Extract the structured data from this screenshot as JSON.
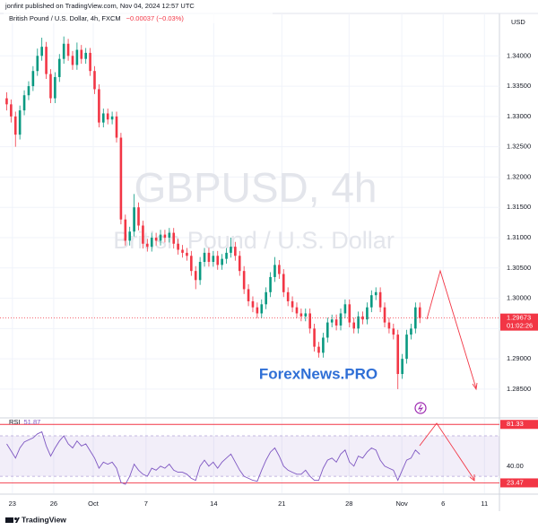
{
  "header": {
    "publisher": "jonfint published on TradingView.com, Nov 04, 2024 12:57 UTC"
  },
  "chart_data": [
    {
      "type": "candlestick",
      "symbol": "British Pound / U.S. Dollar, 4h, FXCM",
      "change": "−0.00037 (−0.03%)",
      "watermark": "GBPUSD, 4h",
      "watermark_subtitle": "British Pound / U.S. Dollar",
      "currency": "USD",
      "overlay_text": "ForexNews.PRO",
      "countdown": "01:02:26",
      "up_color": "#089981",
      "down_color": "#f23645",
      "open": [
        1.333,
        1.332,
        1.33,
        1.327,
        1.331,
        1.3335,
        1.335,
        1.3375,
        1.34,
        1.3415,
        1.337,
        1.333,
        1.3365,
        1.3395,
        1.342,
        1.34,
        1.3385,
        1.341,
        1.3395,
        1.3405,
        1.3375,
        1.3345,
        1.329,
        1.3305,
        1.3295,
        1.33,
        1.3265,
        1.313,
        1.3095,
        1.311,
        1.315,
        1.312,
        1.309,
        1.3085,
        1.31,
        1.3095,
        1.3105,
        1.31,
        1.3108,
        1.309,
        1.308,
        1.3075,
        1.307,
        1.3045,
        1.303,
        1.306,
        1.3075,
        1.306,
        1.307,
        1.3055,
        1.3065,
        1.3075,
        1.3085,
        1.307,
        1.3045,
        1.3015,
        1.2995,
        1.2985,
        1.2975,
        1.299,
        1.301,
        1.3035,
        1.3055,
        1.304,
        1.301,
        1.2995,
        1.2985,
        1.2975,
        1.297,
        1.2975,
        1.295,
        1.292,
        1.291,
        1.2935,
        1.296,
        1.2965,
        1.2955,
        1.2975,
        1.299,
        1.296,
        1.295,
        1.297,
        1.2965,
        1.2985,
        1.3005,
        1.301,
        1.2985,
        1.296,
        1.295,
        1.294,
        1.2875,
        1.29,
        1.294,
        1.295,
        1.2985
      ],
      "high": [
        1.334,
        1.3328,
        1.3308,
        1.3318,
        1.3343,
        1.3358,
        1.3383,
        1.3412,
        1.343,
        1.3423,
        1.3378,
        1.3373,
        1.3403,
        1.3432,
        1.3428,
        1.3408,
        1.3422,
        1.3418,
        1.3413,
        1.3413,
        1.3383,
        1.3353,
        1.3313,
        1.3313,
        1.3308,
        1.3308,
        1.3273,
        1.3138,
        1.3118,
        1.3172,
        1.3158,
        1.3128,
        1.3098,
        1.3108,
        1.3108,
        1.3113,
        1.3113,
        1.3116,
        1.3116,
        1.3098,
        1.3088,
        1.3083,
        1.3078,
        1.3053,
        1.3068,
        1.3083,
        1.3083,
        1.3078,
        1.3078,
        1.3073,
        1.3083,
        1.31,
        1.3093,
        1.3078,
        1.3053,
        1.3023,
        1.3003,
        1.2993,
        1.2998,
        1.3018,
        1.3043,
        1.3068,
        1.3063,
        1.3048,
        1.3018,
        1.3003,
        1.2993,
        1.2983,
        1.2983,
        1.2983,
        1.2958,
        1.2928,
        1.2943,
        1.2968,
        1.2973,
        1.2973,
        1.2983,
        1.2998,
        1.2998,
        1.2968,
        1.2978,
        1.2978,
        1.2993,
        1.3013,
        1.3018,
        1.3018,
        1.2993,
        1.2968,
        1.2958,
        1.2948,
        1.2908,
        1.2948,
        1.2958,
        1.2993,
        1.2993
      ],
      "low": [
        1.331,
        1.329,
        1.325,
        1.3262,
        1.3302,
        1.3327,
        1.3342,
        1.3367,
        1.3392,
        1.3362,
        1.3322,
        1.3322,
        1.3357,
        1.3387,
        1.3392,
        1.3377,
        1.3377,
        1.3387,
        1.3387,
        1.3367,
        1.3337,
        1.3282,
        1.3282,
        1.3287,
        1.3287,
        1.3257,
        1.3122,
        1.3087,
        1.3087,
        1.3102,
        1.3112,
        1.3082,
        1.3077,
        1.3077,
        1.3087,
        1.3087,
        1.3092,
        1.3092,
        1.3082,
        1.3072,
        1.3067,
        1.3062,
        1.3037,
        1.3015,
        1.3022,
        1.3052,
        1.3052,
        1.3052,
        1.3047,
        1.3047,
        1.3057,
        1.3067,
        1.3062,
        1.3037,
        1.3007,
        1.2987,
        1.2977,
        1.2967,
        1.2967,
        1.2982,
        1.3002,
        1.3027,
        1.3032,
        1.3002,
        1.2987,
        1.2977,
        1.2967,
        1.2962,
        1.2962,
        1.2942,
        1.2912,
        1.2902,
        1.2902,
        1.2927,
        1.2952,
        1.2947,
        1.2947,
        1.2967,
        1.2952,
        1.2942,
        1.2942,
        1.2957,
        1.2957,
        1.2977,
        1.2997,
        1.2977,
        1.2952,
        1.2942,
        1.2932,
        1.285,
        1.2867,
        1.2892,
        1.2932,
        1.2942,
        1.2959
      ],
      "close": [
        1.332,
        1.33,
        1.327,
        1.331,
        1.3335,
        1.335,
        1.3375,
        1.34,
        1.3415,
        1.337,
        1.333,
        1.3365,
        1.3395,
        1.342,
        1.34,
        1.3385,
        1.341,
        1.3395,
        1.3405,
        1.3375,
        1.3345,
        1.329,
        1.3305,
        1.3295,
        1.33,
        1.3265,
        1.313,
        1.3095,
        1.311,
        1.315,
        1.312,
        1.309,
        1.3085,
        1.31,
        1.3095,
        1.3105,
        1.31,
        1.3108,
        1.309,
        1.308,
        1.3075,
        1.307,
        1.3045,
        1.303,
        1.306,
        1.3075,
        1.306,
        1.307,
        1.3055,
        1.3065,
        1.3075,
        1.3085,
        1.307,
        1.3045,
        1.3015,
        1.2995,
        1.2985,
        1.2975,
        1.299,
        1.301,
        1.3035,
        1.3055,
        1.304,
        1.301,
        1.2995,
        1.2985,
        1.2975,
        1.297,
        1.2975,
        1.295,
        1.292,
        1.291,
        1.2935,
        1.296,
        1.2965,
        1.2955,
        1.2975,
        1.299,
        1.296,
        1.295,
        1.297,
        1.2965,
        1.2985,
        1.3005,
        1.301,
        1.2985,
        1.296,
        1.295,
        1.294,
        1.2875,
        1.29,
        1.294,
        1.295,
        1.2985,
        1.29673
      ],
      "xlim": [
        -0.5,
        111.7
      ],
      "xticks": [
        {
          "value": 1.3,
          "label": "23"
        },
        {
          "value": 10.7,
          "label": "26"
        },
        {
          "value": 19.7,
          "label": "Oct"
        },
        {
          "value": 31.7,
          "label": "7"
        },
        {
          "value": 47.1,
          "label": "14"
        },
        {
          "value": 62.6,
          "label": "21"
        },
        {
          "value": 77.9,
          "label": "28"
        },
        {
          "value": 89.9,
          "label": "Nov"
        },
        {
          "value": 99.3,
          "label": "6"
        },
        {
          "value": 108.7,
          "label": "11"
        }
      ],
      "ylim": [
        1.2804,
        1.347
      ],
      "yticks": [
        {
          "value": 1.285,
          "label": "1.28500"
        },
        {
          "value": 1.29,
          "label": "1.29000"
        },
        {
          "value": 1.295,
          "label": "1.29500"
        },
        {
          "value": 1.3,
          "label": "1.30000"
        },
        {
          "value": 1.305,
          "label": "1.30500"
        },
        {
          "value": 1.31,
          "label": "1.31000"
        },
        {
          "value": 1.315,
          "label": "1.31500"
        },
        {
          "value": 1.32,
          "label": "1.32000"
        },
        {
          "value": 1.325,
          "label": "1.32500"
        },
        {
          "value": 1.33,
          "label": "1.33000"
        },
        {
          "value": 1.335,
          "label": "1.33500"
        },
        {
          "value": 1.34,
          "label": "1.34000"
        }
      ],
      "grid": true
    },
    {
      "type": "line",
      "name": "RSI",
      "color": "#7e57c2",
      "values": [
        62,
        55,
        48,
        58,
        64,
        66,
        68,
        72,
        74,
        60,
        50,
        58,
        65,
        70,
        62,
        58,
        65,
        60,
        62,
        55,
        48,
        38,
        44,
        42,
        44,
        38,
        24,
        22,
        30,
        42,
        36,
        32,
        30,
        38,
        36,
        40,
        38,
        42,
        36,
        34,
        34,
        32,
        28,
        26,
        40,
        46,
        40,
        44,
        38,
        44,
        48,
        52,
        44,
        36,
        30,
        28,
        26,
        25,
        36,
        46,
        54,
        58,
        50,
        40,
        36,
        34,
        32,
        32,
        36,
        30,
        26,
        26,
        38,
        46,
        48,
        44,
        52,
        56,
        44,
        40,
        50,
        48,
        54,
        58,
        56,
        46,
        40,
        38,
        36,
        26,
        36,
        46,
        48,
        56,
        51.87
      ],
      "bands": [
        30,
        70
      ],
      "hlines": [
        81.33,
        23.47
      ],
      "hline_color": "#f23645",
      "ylim": [
        15,
        86
      ],
      "yticks": [
        {
          "value": 40,
          "label": "40.00"
        }
      ]
    }
  ],
  "footer": {
    "brand": "TradingView"
  }
}
